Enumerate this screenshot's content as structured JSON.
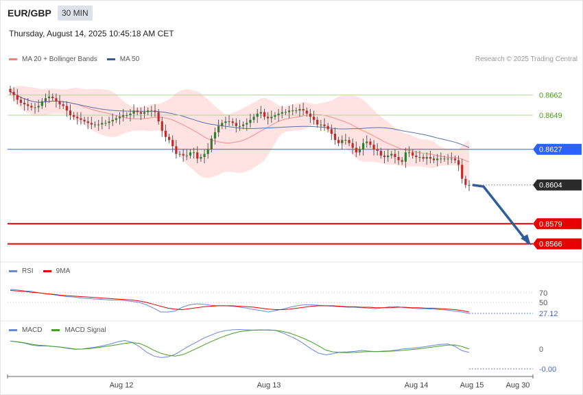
{
  "header": {
    "symbol": "EUR/GBP",
    "timeframe": "30 MIN",
    "datetime": "Thursday, August 14, 2025 10:45:18 AM CET"
  },
  "price_legend": [
    {
      "label": "MA 20 + Bollinger Bands",
      "color": "#ff7b7b"
    },
    {
      "label": "MA 50",
      "color": "#2e5c9e"
    }
  ],
  "credit": "Research © 2025 Trading Central",
  "rsi_legend": [
    {
      "label": "RSI",
      "color": "#6a86d6"
    },
    {
      "label": "9MA",
      "color": "#e80000"
    }
  ],
  "macd_legend": [
    {
      "label": "MACD",
      "color": "#6a86d6"
    },
    {
      "label": "MACD Signal",
      "color": "#44a020"
    }
  ],
  "colors": {
    "up": "#2e7d32",
    "down": "#c62828",
    "resistance_line": "#2962ff",
    "support_line": "#e60000",
    "reference_lines": "#b5d39a",
    "forecast_arrow": "#2f5d9b",
    "bollinger_fill": "#ffd9d9"
  },
  "chart_data": [
    {
      "type": "candlestick",
      "title": "EUR/GBP",
      "x_labels": [
        "Aug 12",
        "Aug 13",
        "Aug 14",
        "Aug 15",
        "Aug 30"
      ],
      "ylim": [
        0.8557,
        0.8672
      ],
      "last_price": "0.8604",
      "levels": [
        {
          "value": 0.8662,
          "label": "0.8662",
          "kind": "reference"
        },
        {
          "value": 0.8649,
          "label": "0.8649",
          "kind": "reference"
        },
        {
          "value": 0.8627,
          "label": "0.8627",
          "kind": "resistance"
        },
        {
          "value": 0.8579,
          "label": "0.8579",
          "kind": "support"
        },
        {
          "value": 0.8566,
          "label": "0.8566",
          "kind": "support"
        }
      ],
      "forecast_path": [
        0.8604,
        0.8603,
        0.8566
      ],
      "close": [
        0.8664,
        0.8662,
        0.8659,
        0.8657,
        0.8656,
        0.8655,
        0.8654,
        0.8654,
        0.8655,
        0.8658,
        0.866,
        0.8661,
        0.866,
        0.8658,
        0.8656,
        0.8655,
        0.8652,
        0.8649,
        0.8648,
        0.8647,
        0.8646,
        0.8645,
        0.8644,
        0.8643,
        0.8643,
        0.8643,
        0.8644,
        0.8644,
        0.8645,
        0.8646,
        0.8647,
        0.8648,
        0.8649,
        0.8649,
        0.865,
        0.8652,
        0.8651,
        0.865,
        0.8651,
        0.8652,
        0.8652,
        0.8651,
        0.8645,
        0.8639,
        0.8635,
        0.8633,
        0.8629,
        0.8624,
        0.8624,
        0.8623,
        0.8623,
        0.8625,
        0.8625,
        0.8621,
        0.8622,
        0.8624,
        0.8627,
        0.8634,
        0.8638,
        0.8642,
        0.8644,
        0.8645,
        0.8645,
        0.8644,
        0.8642,
        0.8642,
        0.8643,
        0.8644,
        0.8646,
        0.8648,
        0.865,
        0.8651,
        0.8648,
        0.8647,
        0.8648,
        0.8649,
        0.865,
        0.8651,
        0.8651,
        0.8652,
        0.8652,
        0.8652,
        0.8653,
        0.8652,
        0.865,
        0.8648,
        0.8646,
        0.8643,
        0.8643,
        0.8642,
        0.864,
        0.8637,
        0.8633,
        0.8631,
        0.8633,
        0.8633,
        0.8631,
        0.8628,
        0.8625,
        0.8627,
        0.8631,
        0.8632,
        0.863,
        0.8627,
        0.8626,
        0.8623,
        0.8622,
        0.8623,
        0.8624,
        0.8622,
        0.862,
        0.8619,
        0.8625,
        0.8625,
        0.8623,
        0.8622,
        0.8622,
        0.8621,
        0.8622,
        0.8621,
        0.862,
        0.8621,
        0.8621,
        0.8621,
        0.8621,
        0.8621,
        0.862,
        0.8617,
        0.8608,
        0.8604,
        0.8604
      ]
    },
    {
      "type": "line",
      "title": "RSI",
      "ylim": [
        0,
        100
      ],
      "reference_levels": [
        70,
        50
      ],
      "last_value": "27.12",
      "series": [
        {
          "name": "RSI",
          "values": [
            77,
            76,
            74,
            73,
            70,
            68,
            66,
            64,
            62,
            61,
            59,
            58,
            57,
            56,
            55,
            55,
            54,
            52,
            50,
            45,
            38,
            30,
            30,
            32,
            40,
            45,
            47,
            46,
            44,
            43,
            43,
            42,
            40,
            38,
            35,
            33,
            30,
            33,
            36,
            40,
            43,
            45,
            45,
            44,
            43,
            42,
            41,
            40,
            40,
            39,
            38,
            37,
            39,
            41,
            41,
            39,
            38,
            37,
            37,
            36,
            35,
            34,
            32,
            30,
            27
          ]
        },
        {
          "name": "9MA",
          "values": [
            75,
            74,
            73,
            71,
            70,
            68,
            67,
            65,
            64,
            63,
            62,
            61,
            60,
            59,
            58,
            57,
            56,
            55,
            53,
            50,
            46,
            42,
            38,
            36,
            35,
            37,
            39,
            41,
            42,
            43,
            43,
            43,
            42,
            41,
            40,
            38,
            36,
            35,
            35,
            36,
            38,
            40,
            42,
            43,
            43,
            43,
            42,
            41,
            41,
            40,
            40,
            39,
            39,
            39,
            40,
            40,
            39,
            39,
            38,
            38,
            37,
            36,
            35,
            33,
            30
          ]
        }
      ]
    },
    {
      "type": "line",
      "title": "MACD",
      "zero_label": "0",
      "last_value": "-0.00",
      "series": [
        {
          "name": "MACD",
          "values": [
            0.00062,
            0.00055,
            0.00046,
            0.00031,
            0.00024,
            0.00025,
            0.0002,
            0.00015,
            5e-05,
            -2e-05,
            0.0,
            8e-05,
            0.00016,
            0.00027,
            0.0004,
            0.00057,
            0.00067,
            0.00052,
            0.0002,
            -0.00024,
            -0.00054,
            -0.00066,
            -0.00061,
            -0.00041,
            -7e-05,
            0.00026,
            0.00055,
            0.00086,
            0.00109,
            0.00131,
            0.00144,
            0.00151,
            0.00153,
            0.0015,
            0.00148,
            0.00148,
            0.0015,
            0.00146,
            0.00126,
            0.00101,
            0.00074,
            0.00039,
            0.0,
            -0.00032,
            -0.00045,
            -0.00037,
            -0.00024,
            -0.00022,
            -0.00018,
            -0.00011,
            -0.00016,
            -0.0002,
            -0.00016,
            -0.00014,
            -6e-05,
            3e-05,
            6e-05,
            0.00012,
            0.0002,
            0.00029,
            0.00036,
            0.0004,
            0.00022,
            -0.00012,
            -0.00026
          ]
        },
        {
          "name": "MACD Signal",
          "values": [
            0.00062,
            0.00057,
            0.00049,
            0.00037,
            0.0003,
            0.00026,
            0.00021,
            0.00016,
            8e-05,
            1e-05,
            0.0,
            3e-05,
            0.0001,
            0.00018,
            0.00026,
            0.00035,
            0.00045,
            0.0005,
            0.00044,
            0.00021,
            -9e-05,
            -0.00033,
            -0.00048,
            -0.00055,
            -0.00045,
            -0.00021,
            5e-05,
            0.00032,
            0.00058,
            0.00082,
            0.00104,
            0.00122,
            0.00136,
            0.00143,
            0.00148,
            0.0015,
            0.00148,
            0.00146,
            0.00138,
            0.00124,
            0.00104,
            0.00081,
            0.00055,
            0.00025,
            -8e-05,
            -0.00022,
            -0.00026,
            -0.00028,
            -0.00026,
            -0.00022,
            -0.0002,
            -0.0002,
            -0.00019,
            -0.00017,
            -0.00014,
            -9e-05,
            -4e-05,
            2e-05,
            9e-05,
            0.00017,
            0.00024,
            0.00031,
            0.00032,
            0.0002,
            0.0
          ]
        }
      ]
    }
  ]
}
